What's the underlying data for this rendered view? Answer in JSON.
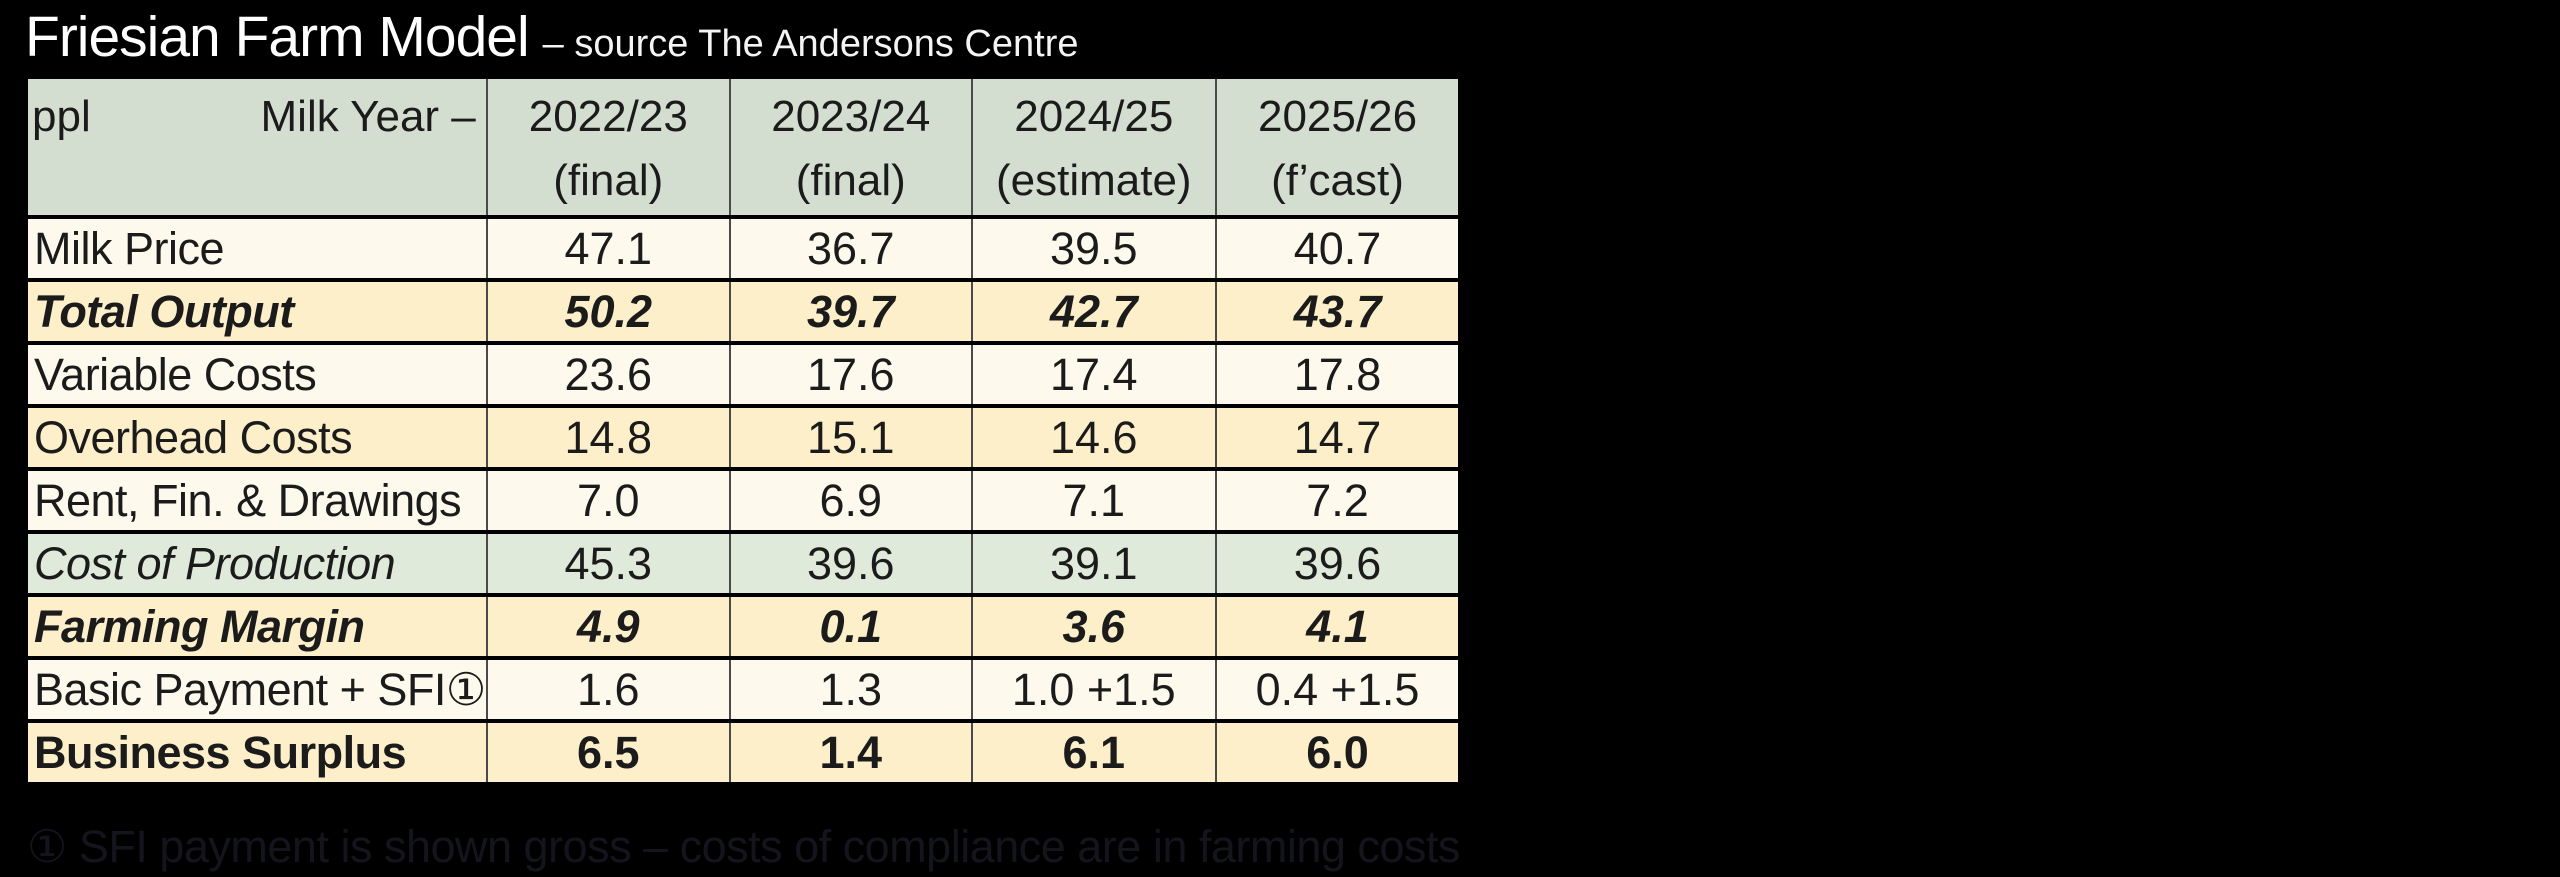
{
  "title": {
    "main": "Friesian Farm Model",
    "suffix": "– source The Andersons Centre"
  },
  "table": {
    "corner": {
      "unit": "ppl",
      "axis_label": "Milk Year –"
    },
    "columns": [
      {
        "year": "2022/23",
        "status": "(final)"
      },
      {
        "year": "2023/24",
        "status": "(final)"
      },
      {
        "year": "2024/25",
        "status": "(estimate)"
      },
      {
        "year": "2025/26",
        "status": "(f’cast)"
      }
    ],
    "rows": [
      {
        "label": "Milk Price",
        "values": [
          "47.1",
          "36.7",
          "39.5",
          "40.7"
        ]
      },
      {
        "label": "Total Output",
        "values": [
          "50.2",
          "39.7",
          "42.7",
          "43.7"
        ]
      },
      {
        "label": "Variable Costs",
        "values": [
          "23.6",
          "17.6",
          "17.4",
          "17.8"
        ]
      },
      {
        "label": "Overhead Costs",
        "values": [
          "14.8",
          "15.1",
          "14.6",
          "14.7"
        ]
      },
      {
        "label": "Rent, Fin. & Drawings",
        "values": [
          "7.0",
          "6.9",
          "7.1",
          "7.2"
        ]
      },
      {
        "label": "Cost of Production",
        "values": [
          "45.3",
          "39.6",
          "39.1",
          "39.6"
        ]
      },
      {
        "label": "Farming Margin",
        "values": [
          "4.9",
          "0.1",
          "3.6",
          "4.1"
        ]
      },
      {
        "label": "Basic Payment + SFI①",
        "values": [
          "1.6",
          "1.3",
          "1.0 +1.5",
          "0.4 +1.5"
        ]
      },
      {
        "label": "Business Surplus",
        "values": [
          "6.5",
          "1.4",
          "6.1",
          "6.0"
        ]
      }
    ]
  },
  "footnote": "① SFI payment is shown gross – costs of compliance are in farming costs",
  "colors": {
    "background": "#000000",
    "title_text": "#ffffff",
    "header_fill": "#d3ddd0",
    "row_ivory": "#fdf9ec",
    "row_cream": "#fcefc9",
    "row_green": "#dfeadb",
    "cell_text": "#1b1b1b",
    "grid_vertical": "#4a4a4a",
    "grid_horizontal": "#000000",
    "footnote_text": "#14141d"
  }
}
